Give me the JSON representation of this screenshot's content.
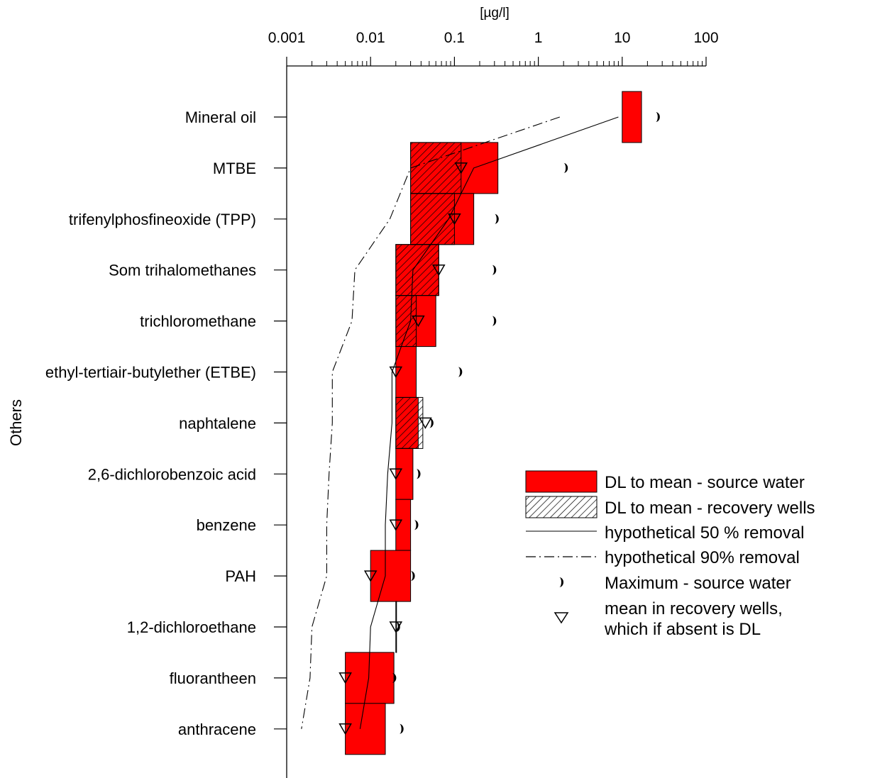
{
  "chart_data": {
    "type": "bar",
    "unit_label": "[µg/l]",
    "ylabel": "Others",
    "x_scale": "log",
    "xlim": [
      0.001,
      100
    ],
    "x_tick_labels": [
      "0.001",
      "0.01",
      "0.1",
      "1",
      "10",
      "100"
    ],
    "x_tick_values": [
      0.001,
      0.01,
      0.1,
      1,
      10,
      100
    ],
    "categories": [
      "Mineral oil",
      "MTBE",
      "trifenylphosfineoxide (TPP)",
      "Som trihalomethanes",
      "trichloromethane",
      "ethyl-tertiair-butylether (ETBE)",
      "naphtalene",
      "2,6-dichlorobenzoic acid",
      "benzene",
      "PAH",
      "1,2-dichloroethane",
      "fluorantheen",
      "anthracene"
    ],
    "series": [
      {
        "name": "DL to mean - source water",
        "color": "#ff0000",
        "dl": [
          10,
          0.03,
          0.03,
          0.02,
          0.02,
          0.02,
          0.02,
          0.02,
          0.02,
          0.01,
          0.02,
          0.005,
          0.005
        ],
        "mean": [
          17,
          0.33,
          0.17,
          0.065,
          0.06,
          0.035,
          0.037,
          0.032,
          0.03,
          0.03,
          0.02,
          0.019,
          0.015
        ]
      },
      {
        "name": "DL to mean - recovery wells",
        "pattern": "hatched",
        "dl": [
          null,
          0.03,
          0.03,
          0.02,
          0.02,
          null,
          0.02,
          null,
          null,
          null,
          null,
          null,
          null
        ],
        "mean": [
          null,
          0.12,
          0.1,
          0.065,
          0.035,
          null,
          0.042,
          null,
          null,
          null,
          null,
          null,
          null
        ]
      },
      {
        "name": "hypothetical 50 % removal",
        "line": "solid",
        "values": [
          9,
          0.17,
          0.085,
          0.032,
          0.03,
          0.018,
          0.018,
          0.016,
          0.015,
          0.015,
          0.01,
          0.0095,
          0.0075
        ]
      },
      {
        "name": "hypothetical 90% removal",
        "line": "dash-dot",
        "values": [
          1.8,
          0.03,
          0.017,
          0.0065,
          0.006,
          0.0035,
          0.0035,
          0.0032,
          0.003,
          0.003,
          0.002,
          0.0019,
          0.0015
        ]
      },
      {
        "name": "Maximum - source water",
        "marker": "half-moon",
        "values": [
          25,
          2,
          0.3,
          0.28,
          0.28,
          0.11,
          0.05,
          0.035,
          0.033,
          0.03,
          0.02,
          0.018,
          0.022
        ]
      },
      {
        "name": "mean in recovery wells, which if absent is DL",
        "marker": "triangle-down",
        "values": [
          null,
          0.12,
          0.1,
          0.065,
          0.037,
          0.02,
          0.045,
          0.02,
          0.02,
          0.01,
          0.02,
          0.005,
          0.005
        ]
      }
    ],
    "legend": {
      "placement": "right",
      "entries": [
        "DL to mean - source water",
        "DL to mean - recovery wells",
        "hypothetical 50 % removal",
        "hypothetical 90% removal",
        "Maximum - source water",
        "mean in recovery wells,",
        "which if absent is DL"
      ]
    }
  }
}
